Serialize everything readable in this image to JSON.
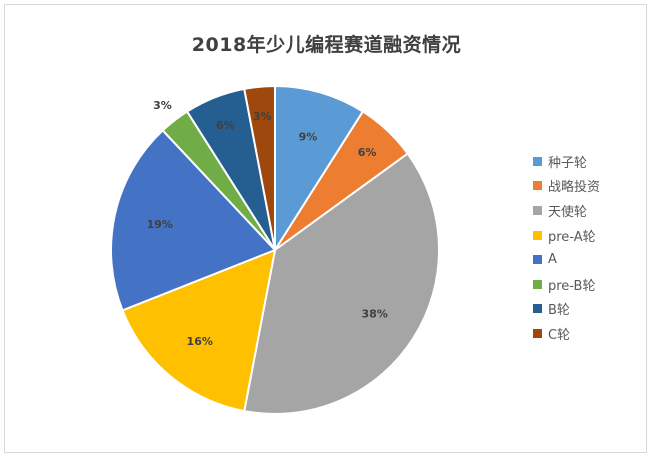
{
  "chart_data": {
    "type": "pie",
    "title": "2018年少儿编程赛道融资情况",
    "categories": [
      "种子轮",
      "战略投资",
      "天使轮",
      "pre-A轮",
      "A",
      "pre-B轮",
      "B轮",
      "C轮"
    ],
    "values": [
      9,
      6,
      38,
      16,
      19,
      3,
      6,
      3
    ],
    "labels": [
      "9%",
      "6%",
      "38%",
      "16%",
      "19%",
      "3%",
      "6%",
      "3%"
    ],
    "colors": [
      "#5b9bd5",
      "#ed7d31",
      "#a5a5a5",
      "#ffc000",
      "#4472c4",
      "#70ad47",
      "#255e91",
      "#9e480e"
    ],
    "legend_position": "right"
  }
}
